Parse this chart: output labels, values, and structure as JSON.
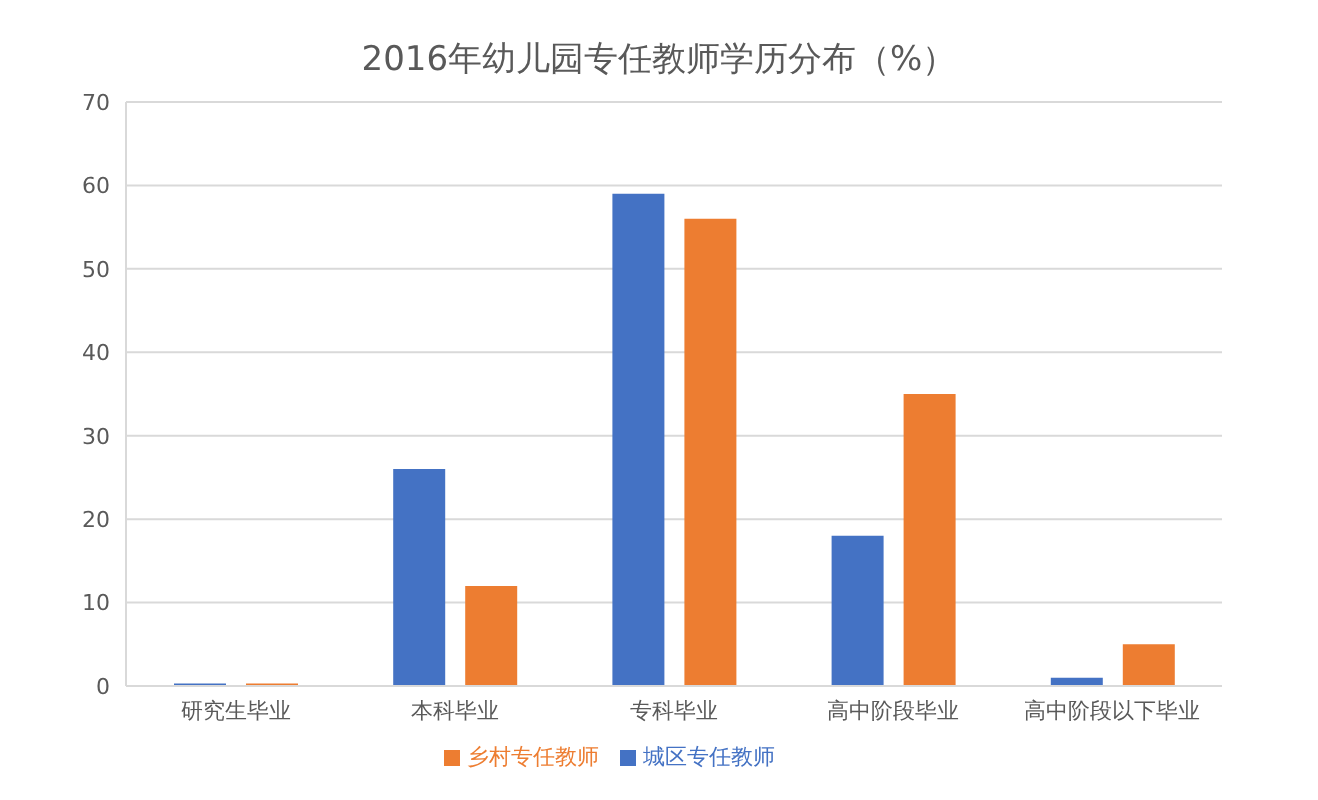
{
  "chart_data": {
    "type": "bar",
    "title": "2016年幼儿园专任教师学历分布（%）",
    "categories": [
      "研究生毕业",
      "本科毕业",
      "专科毕业",
      "高中阶段毕业",
      "高中阶段以下毕业"
    ],
    "series": [
      {
        "name": "城区专任教师",
        "color": "#4472c4",
        "values": [
          0.3,
          26,
          59,
          18,
          1
        ]
      },
      {
        "name": "乡村专任教师",
        "color": "#ed7d31",
        "values": [
          0.3,
          12,
          56,
          35,
          5
        ]
      }
    ],
    "ylim": [
      0,
      70
    ],
    "yticks": [
      0,
      10,
      20,
      30,
      40,
      50,
      60,
      70
    ],
    "grid": "y",
    "legend": "bottom"
  }
}
